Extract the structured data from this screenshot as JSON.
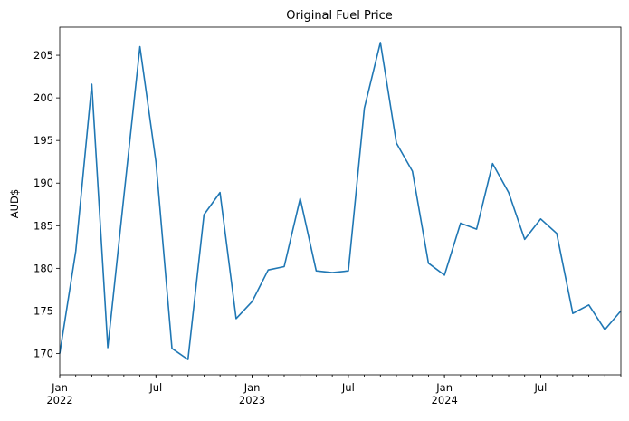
{
  "chart_data": {
    "type": "line",
    "title": "Original Fuel Price",
    "xlabel": "",
    "ylabel": "AUD$",
    "x": [
      "2022-01",
      "2022-02",
      "2022-03",
      "2022-04",
      "2022-05",
      "2022-06",
      "2022-07",
      "2022-08",
      "2022-09",
      "2022-10",
      "2022-11",
      "2022-12",
      "2023-01",
      "2023-02",
      "2023-03",
      "2023-04",
      "2023-05",
      "2023-06",
      "2023-07",
      "2023-08",
      "2023-09",
      "2023-10",
      "2023-11",
      "2023-12",
      "2024-01",
      "2024-02",
      "2024-03",
      "2024-04",
      "2024-05",
      "2024-06",
      "2024-07",
      "2024-08",
      "2024-09",
      "2024-10",
      "2024-11",
      "2024-12"
    ],
    "series": [
      {
        "values": [
          170.0,
          182.0,
          201.6,
          170.7,
          188.5,
          206.0,
          192.5,
          170.6,
          169.3,
          186.3,
          188.9,
          174.1,
          176.1,
          179.8,
          180.2,
          188.2,
          179.7,
          179.5,
          179.7,
          198.8,
          206.5,
          194.7,
          191.4,
          180.6,
          179.2,
          185.3,
          184.6,
          192.3,
          188.9,
          183.4,
          185.8,
          184.1,
          174.7,
          175.7,
          172.8,
          175.0
        ],
        "color": "#1f77b4"
      }
    ],
    "ylim": [
      167.5,
      208.3
    ],
    "yticks": [
      170,
      175,
      180,
      185,
      190,
      195,
      200,
      205
    ],
    "xticks_major": [
      {
        "x": "2022-01",
        "label": "Jan",
        "sub": "2022"
      },
      {
        "x": "2022-07",
        "label": "Jul",
        "sub": ""
      },
      {
        "x": "2023-01",
        "label": "Jan",
        "sub": "2023"
      },
      {
        "x": "2023-07",
        "label": "Jul",
        "sub": ""
      },
      {
        "x": "2024-01",
        "label": "Jan",
        "sub": "2024"
      },
      {
        "x": "2024-07",
        "label": "Jul",
        "sub": ""
      }
    ],
    "grid": false,
    "legend": "none"
  }
}
